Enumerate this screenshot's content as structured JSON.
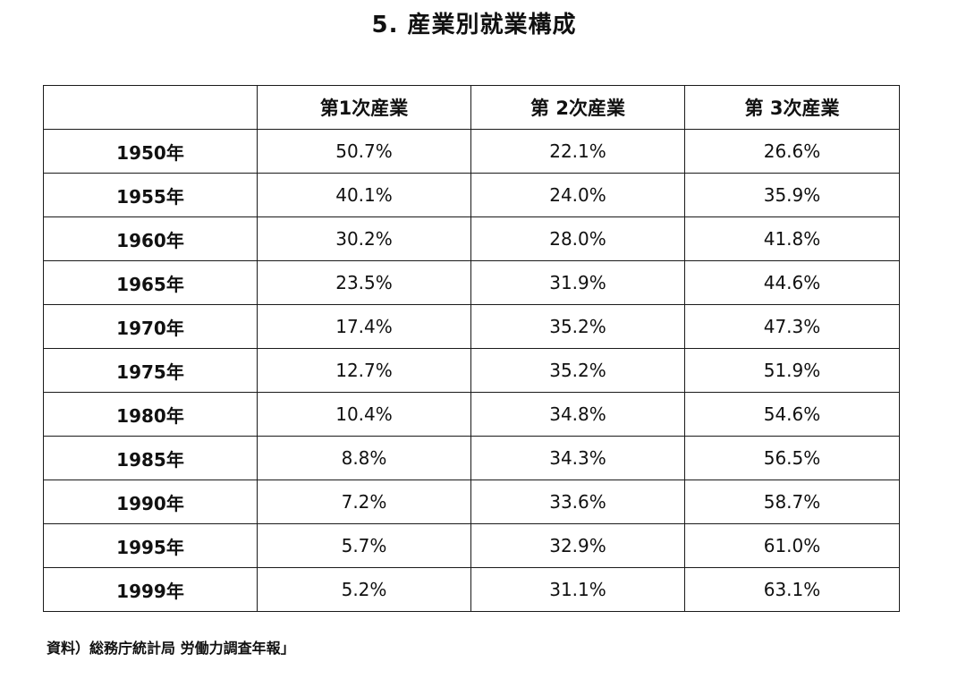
{
  "title": "5. 産業別就業構成",
  "table": {
    "headers": [
      "",
      "第1次産業",
      "第 2次産業",
      "第 3次産業"
    ],
    "rows": [
      {
        "year": "1950年",
        "primary": "50.7%",
        "secondary": "22.1%",
        "tertiary": "26.6%"
      },
      {
        "year": "1955年",
        "primary": "40.1%",
        "secondary": "24.0%",
        "tertiary": "35.9%"
      },
      {
        "year": "1960年",
        "primary": "30.2%",
        "secondary": "28.0%",
        "tertiary": "41.8%"
      },
      {
        "year": "1965年",
        "primary": "23.5%",
        "secondary": "31.9%",
        "tertiary": "44.6%"
      },
      {
        "year": "1970年",
        "primary": "17.4%",
        "secondary": "35.2%",
        "tertiary": "47.3%"
      },
      {
        "year": "1975年",
        "primary": "12.7%",
        "secondary": "35.2%",
        "tertiary": "51.9%"
      },
      {
        "year": "1980年",
        "primary": "10.4%",
        "secondary": "34.8%",
        "tertiary": "54.6%"
      },
      {
        "year": "1985年",
        "primary": "8.8%",
        "secondary": "34.3%",
        "tertiary": "56.5%"
      },
      {
        "year": "1990年",
        "primary": "7.2%",
        "secondary": "33.6%",
        "tertiary": "58.7%"
      },
      {
        "year": "1995年",
        "primary": "5.7%",
        "secondary": "32.9%",
        "tertiary": "61.0%"
      },
      {
        "year": "1999年",
        "primary": "5.2%",
        "secondary": "31.1%",
        "tertiary": "63.1%"
      }
    ]
  },
  "source": "資料）総務庁統計局 労働力調査年報」"
}
